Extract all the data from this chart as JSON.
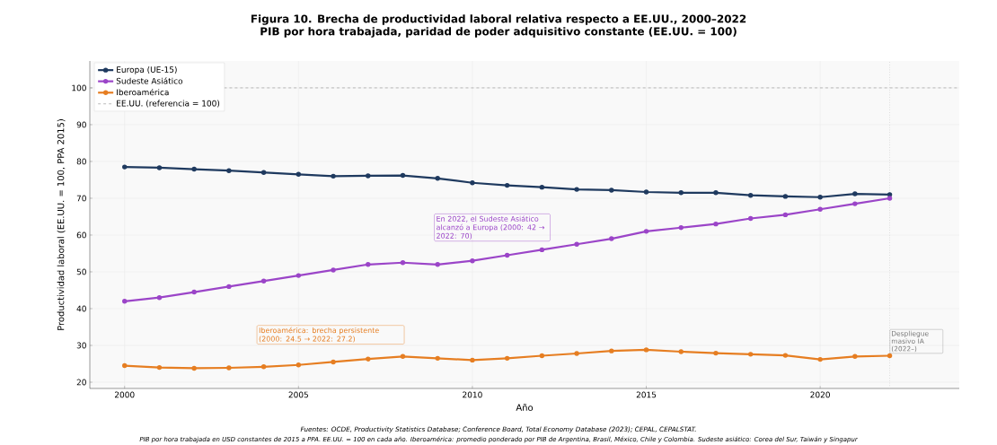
{
  "chart_data": {
    "type": "line",
    "title": "Figura 10. Brecha de productividad laboral relativa respecto a EE.UU., 2000–2022",
    "subtitle": "PIB por hora trabajada, paridad de poder adquisitivo constante (EE.UU. = 100)",
    "xlabel": "Año",
    "ylabel": "Productividad laboral (EE.UU. = 100, PPA 2015)",
    "x": [
      2000,
      2001,
      2002,
      2003,
      2004,
      2005,
      2006,
      2007,
      2008,
      2009,
      2010,
      2011,
      2012,
      2013,
      2014,
      2015,
      2016,
      2017,
      2018,
      2019,
      2020,
      2021,
      2022
    ],
    "series": [
      {
        "name": "Europa (UE-15)",
        "color": "#1f3a5f",
        "values": [
          78.5,
          78.3,
          77.9,
          77.5,
          77.0,
          76.5,
          76.0,
          76.1,
          76.2,
          75.4,
          74.2,
          73.5,
          73.0,
          72.4,
          72.2,
          71.7,
          71.5,
          71.5,
          70.8,
          70.5,
          70.3,
          71.2,
          71.0
        ]
      },
      {
        "name": "Sudeste Asiático",
        "color": "#9b45c8",
        "values": [
          42.0,
          43.0,
          44.5,
          46.0,
          47.5,
          49.0,
          50.5,
          52.0,
          52.5,
          52.0,
          53.0,
          54.5,
          56.0,
          57.5,
          59.0,
          61.0,
          62.0,
          63.0,
          64.5,
          65.5,
          67.0,
          68.5,
          70.0
        ]
      },
      {
        "name": "Iberoamérica",
        "color": "#e67e22",
        "values": [
          24.5,
          24.0,
          23.8,
          23.9,
          24.2,
          24.7,
          25.5,
          26.3,
          27.0,
          26.5,
          26.0,
          26.5,
          27.2,
          27.8,
          28.5,
          28.8,
          28.3,
          27.9,
          27.6,
          27.3,
          26.2,
          27.0,
          27.2
        ]
      }
    ],
    "ref_lines": [
      {
        "axis": "y",
        "value": 100,
        "label": "EE.UU. (referencia = 100)",
        "color": "#aaaaaa",
        "line_style": "dashed"
      },
      {
        "axis": "x",
        "value": 2022,
        "label": "Despliegue masivo IA (2022–)",
        "color": "#cccccc",
        "line_style": "dotted"
      }
    ],
    "annotations": [
      "En 2022, el Sudeste Asiático alcanzó a Europa (2000: 42 → 2022: 70)",
      "Iberoamérica: brecha persistente (2000: 24.5 → 2022: 27.2)",
      "Fuentes: OCDE, Productivity Statistics Database; Conference Board, Total Economy Database (2023); CEPAL, CEPALSTAT.",
      "PIB por hora trabajada en USD constantes de 2015 a PPA. EE.UU. = 100 en cada año. Iberoamérica: promedio ponderado por PIB de Argentina, Brasil, México, Chile y Colombia. Sudeste asiático: Corea del Sur, Taiwán y Singapur"
    ],
    "xlim": [
      1999,
      2024
    ],
    "ylim": [
      18.3,
      107.3
    ],
    "xticks": [
      2000,
      2005,
      2010,
      2015,
      2020
    ],
    "yticks": [
      20,
      30,
      40,
      50,
      60,
      70,
      80,
      90,
      100
    ],
    "grid": true,
    "legend": "top left",
    "marker": "circle",
    "line_style": "solid"
  }
}
